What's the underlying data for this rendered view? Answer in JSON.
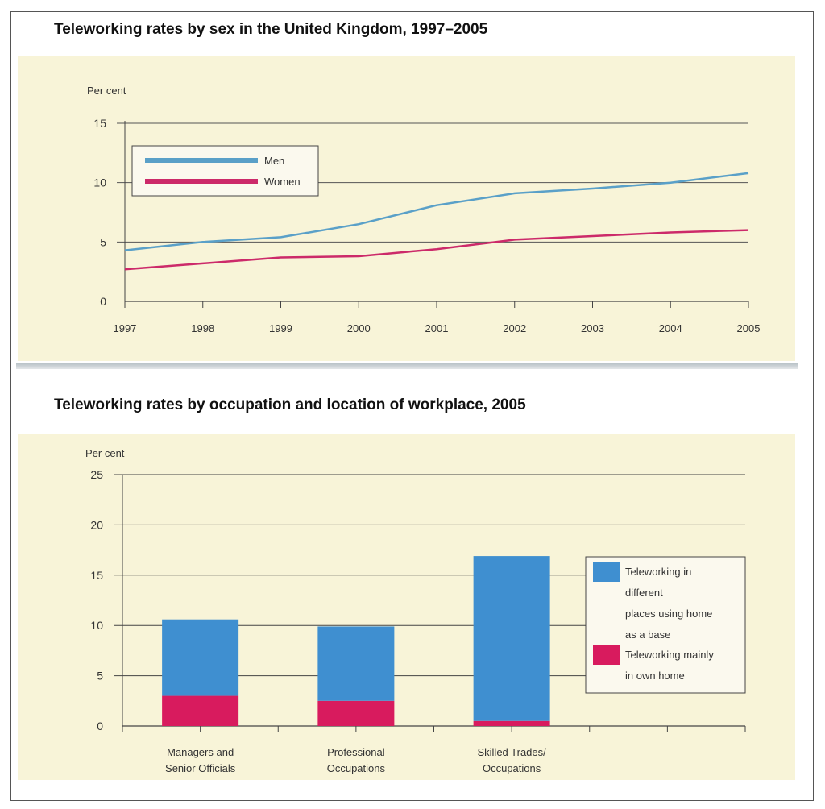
{
  "chart_data": [
    {
      "type": "line",
      "title": "Teleworking rates by sex in the United Kingdom, 1997–2005",
      "ylabel": "Per cent",
      "xlabel": "",
      "ylim": [
        0,
        15
      ],
      "yticks": [
        "0",
        "5",
        "10",
        "15"
      ],
      "x": [
        1997,
        1998,
        1999,
        2000,
        2001,
        2002,
        2003,
        2004,
        2005
      ],
      "xtick_labels": [
        "1997",
        "1998",
        "1999",
        "2000",
        "2001",
        "2002",
        "2003",
        "2004",
        "2005"
      ],
      "series": [
        {
          "name": "Men",
          "color": "#5aa0c8",
          "values": [
            4.3,
            5.0,
            5.4,
            6.5,
            8.1,
            9.1,
            9.5,
            10.0,
            10.8
          ]
        },
        {
          "name": "Women",
          "color": "#cc2a6a",
          "values": [
            2.7,
            3.2,
            3.7,
            3.8,
            4.4,
            5.2,
            5.5,
            5.8,
            6.0
          ]
        }
      ],
      "legend": "top-left",
      "grid": true
    },
    {
      "type": "bar",
      "stacked": true,
      "title": "Teleworking rates by occupation and location of workplace, 2005",
      "ylabel": "Per cent",
      "xlabel": "",
      "ylim": [
        0,
        25
      ],
      "yticks": [
        "0",
        "5",
        "10",
        "15",
        "20",
        "25"
      ],
      "categories": [
        [
          "Managers and",
          "Senior Officials"
        ],
        [
          "Professional",
          "Occupations"
        ],
        [
          "Skilled Trades/",
          "Occupations"
        ]
      ],
      "series": [
        {
          "name": "Teleworking mainly in own home",
          "color": "#d81b5e",
          "values": [
            3.0,
            2.5,
            0.5
          ]
        },
        {
          "name": "Teleworking in different places using home as a base",
          "color": "#3f8fd0",
          "values": [
            7.6,
            7.4,
            16.4
          ]
        }
      ],
      "legend_lines": [
        [
          "Teleworking in",
          "different",
          "places using home",
          "as a base"
        ],
        [
          "Teleworking mainly",
          "in own home"
        ]
      ],
      "legend": "right",
      "grid": true
    }
  ]
}
